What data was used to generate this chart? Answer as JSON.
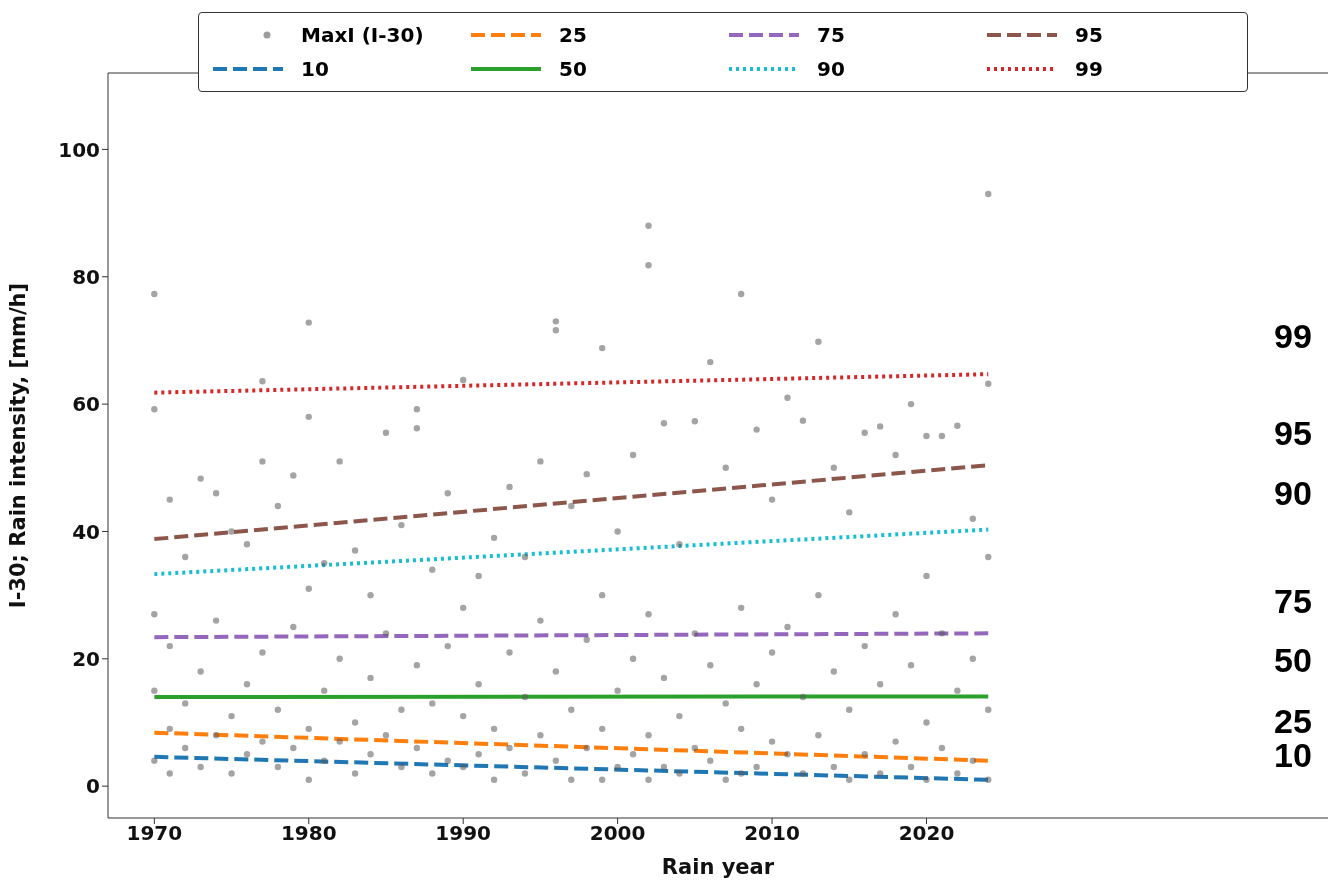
{
  "chart_data": {
    "type": "scatter",
    "xlabel": "Rain year",
    "ylabel": "I-30; Rain intensity, [mm/h]",
    "xlim": [
      1967,
      2046
    ],
    "xticks": [
      1970,
      1980,
      1990,
      2000,
      2010,
      2020
    ],
    "ylim": [
      -5,
      112
    ],
    "yticks": [
      0,
      20,
      40,
      60,
      80,
      100
    ],
    "grid": false,
    "legend": "top",
    "series": [
      {
        "name": "MaxI (I-30)",
        "color": "#5a5a5a",
        "marker": "circle",
        "x": [
          1970,
          1970,
          1970,
          1970,
          1970,
          1971,
          1971,
          1971,
          1971,
          1972,
          1972,
          1972,
          1973,
          1973,
          1973,
          1974,
          1974,
          1974,
          1975,
          1975,
          1975,
          1976,
          1976,
          1976,
          1977,
          1977,
          1977,
          1977,
          1978,
          1978,
          1978,
          1979,
          1979,
          1979,
          1980,
          1980,
          1980,
          1980,
          1980,
          1981,
          1981,
          1981,
          1982,
          1982,
          1982,
          1983,
          1983,
          1983,
          1984,
          1984,
          1984,
          1985,
          1985,
          1985,
          1986,
          1986,
          1986,
          1987,
          1987,
          1987,
          1987,
          1988,
          1988,
          1988,
          1989,
          1989,
          1989,
          1990,
          1990,
          1990,
          1990,
          1991,
          1991,
          1991,
          1992,
          1992,
          1992,
          1993,
          1993,
          1993,
          1994,
          1994,
          1994,
          1995,
          1995,
          1995,
          1996,
          1996,
          1996,
          1996,
          1997,
          1997,
          1997,
          1998,
          1998,
          1998,
          1999,
          1999,
          1999,
          1999,
          2000,
          2000,
          2000,
          2001,
          2001,
          2001,
          2002,
          2002,
          2002,
          2002,
          2002,
          2003,
          2003,
          2003,
          2004,
          2004,
          2004,
          2005,
          2005,
          2005,
          2006,
          2006,
          2006,
          2007,
          2007,
          2007,
          2008,
          2008,
          2008,
          2008,
          2009,
          2009,
          2009,
          2010,
          2010,
          2010,
          2011,
          2011,
          2011,
          2012,
          2012,
          2012,
          2013,
          2013,
          2013,
          2014,
          2014,
          2014,
          2015,
          2015,
          2015,
          2016,
          2016,
          2016,
          2017,
          2017,
          2017,
          2018,
          2018,
          2018,
          2019,
          2019,
          2019,
          2020,
          2020,
          2020,
          2020,
          2021,
          2021,
          2021,
          2022,
          2022,
          2022,
          2023,
          2023,
          2023,
          2024,
          2024,
          2024,
          2024,
          2024
        ],
        "values": [
          77.3,
          59.2,
          27,
          15,
          4,
          45,
          22,
          9,
          2,
          36,
          13,
          6,
          48.3,
          18,
          3,
          46,
          26,
          8,
          40,
          11,
          2,
          38,
          16,
          5,
          63.6,
          51,
          21,
          7,
          44,
          12,
          3,
          48.8,
          25,
          6,
          72.8,
          58,
          31,
          9,
          1,
          35,
          15,
          4,
          51,
          20,
          7,
          37,
          10,
          2,
          30,
          17,
          5,
          55.5,
          24,
          8,
          41,
          12,
          3,
          59.2,
          56.2,
          19,
          6,
          34,
          13,
          2,
          46,
          22,
          4,
          63.8,
          28,
          11,
          3,
          33,
          16,
          5,
          39,
          9,
          1,
          47,
          21,
          6,
          36,
          14,
          2,
          51,
          26,
          8,
          73,
          71.6,
          18,
          4,
          44,
          12,
          1,
          49,
          23,
          6,
          68.8,
          30,
          9,
          1,
          40,
          15,
          3,
          52,
          20,
          5,
          88,
          81.8,
          27,
          8,
          1,
          57,
          17,
          3,
          38,
          11,
          2,
          57.3,
          24,
          6,
          66.6,
          19,
          4,
          50,
          13,
          1,
          77.3,
          28,
          9,
          2,
          56,
          16,
          3,
          45,
          21,
          7,
          61,
          25,
          5,
          57.4,
          14,
          2,
          69.8,
          30,
          8,
          50,
          18,
          3,
          43,
          12,
          1,
          55.5,
          22,
          5,
          56.5,
          16,
          2,
          52,
          27,
          7,
          60,
          19,
          3,
          55,
          33,
          10,
          1,
          55,
          24,
          6,
          56.6,
          15,
          2,
          42,
          20,
          4,
          93,
          63.2,
          36,
          12,
          1
        ]
      },
      {
        "name": "10",
        "type": "line",
        "color": "#1f77b4",
        "line_style": "dashed",
        "x": [
          1970,
          2024
        ],
        "values": [
          4.6,
          1.0
        ]
      },
      {
        "name": "25",
        "type": "line",
        "color": "#ff7f0e",
        "line_style": "dashed",
        "x": [
          1970,
          2024
        ],
        "values": [
          8.4,
          4.0
        ]
      },
      {
        "name": "50",
        "type": "line",
        "color": "#2ca02c",
        "line_style": "solid",
        "x": [
          1970,
          2024
        ],
        "values": [
          14.0,
          14.1
        ]
      },
      {
        "name": "75",
        "type": "line",
        "color": "#9467bd",
        "line_style": "dashed",
        "x": [
          1970,
          2024
        ],
        "values": [
          23.4,
          24.0
        ]
      },
      {
        "name": "90",
        "type": "line",
        "color": "#17becf",
        "line_style": "dotted",
        "x": [
          1970,
          2024
        ],
        "values": [
          33.3,
          40.3
        ]
      },
      {
        "name": "95",
        "type": "line",
        "color": "#8c564b",
        "line_style": "dashed",
        "x": [
          1970,
          2024
        ],
        "values": [
          38.8,
          50.4
        ]
      },
      {
        "name": "99",
        "type": "line",
        "color": "#d62728",
        "line_style": "dotted",
        "x": [
          1970,
          2024
        ],
        "values": [
          61.8,
          64.7
        ]
      }
    ],
    "annotations": [
      "99",
      "95",
      "90",
      "75",
      "50",
      "25",
      "10"
    ]
  }
}
